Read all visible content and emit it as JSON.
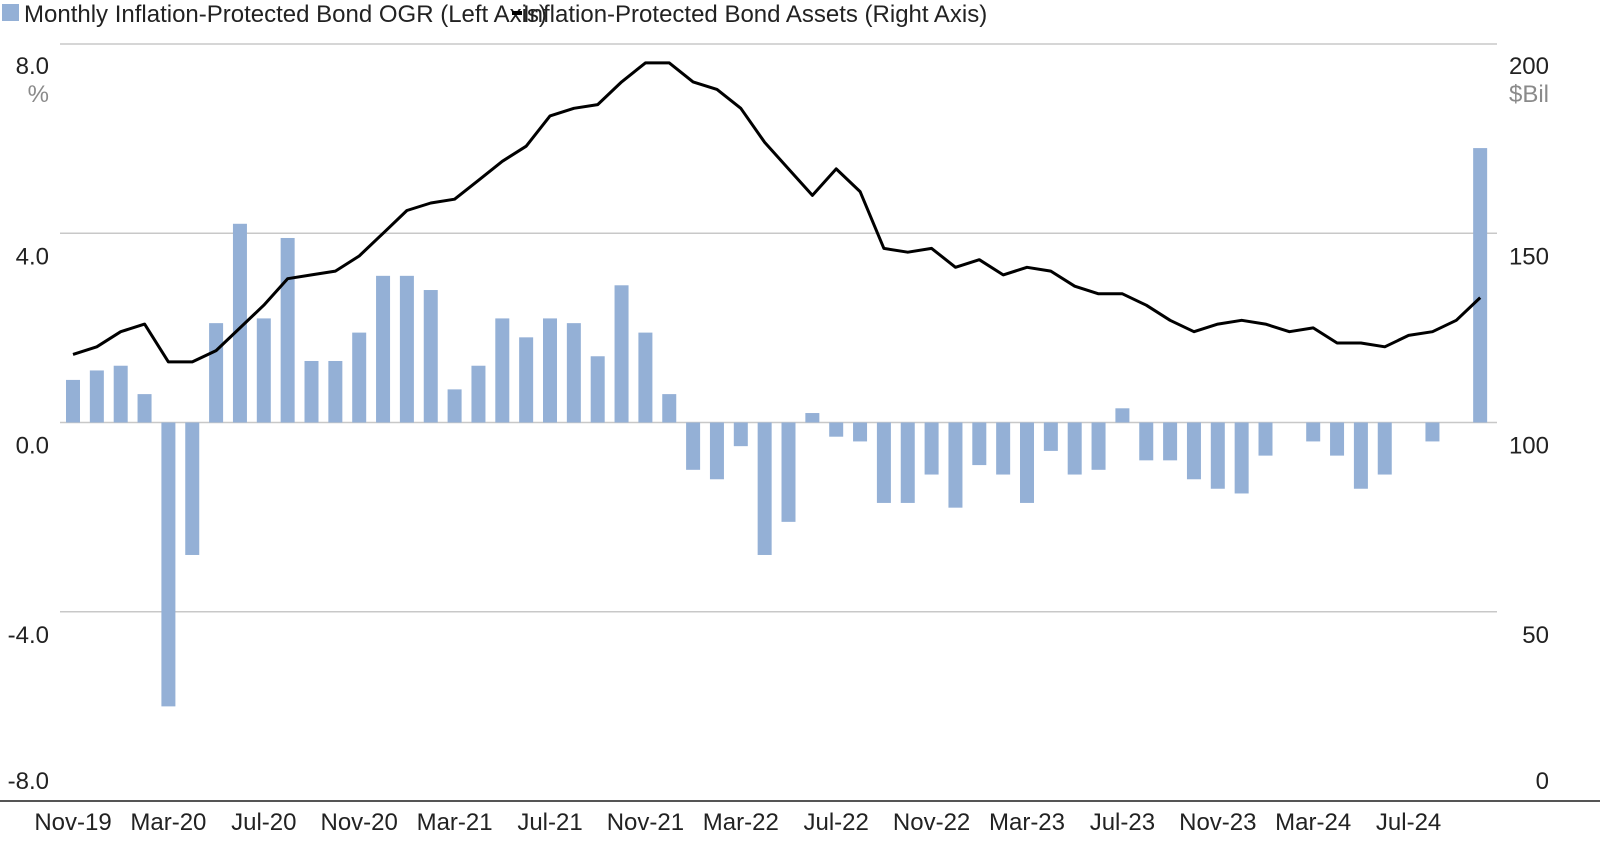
{
  "chart_data": {
    "type": "bar+line",
    "legend": {
      "placement": "top-left",
      "bar_label": "Monthly Inflation-Protected Bond OGR (Left Axis)",
      "line_label": "Inflation-Protected Bond Assets (Right Axis)"
    },
    "left_axis": {
      "unit": "%",
      "ylim": [
        -8,
        8
      ],
      "ticks": [
        8,
        4,
        0,
        -4,
        -8
      ],
      "tick_labels": [
        "8.0",
        "4.0",
        "0.0",
        "-4.0",
        "-8.0"
      ]
    },
    "right_axis": {
      "unit": "$Bil",
      "ylim": [
        0,
        200
      ],
      "ticks": [
        200,
        150,
        100,
        50,
        0
      ],
      "tick_labels": [
        "200",
        "150",
        "100",
        "50",
        "0"
      ]
    },
    "x_tick_labels": [
      "Nov-19",
      "Mar-20",
      "Jul-20",
      "Nov-20",
      "Mar-21",
      "Jul-21",
      "Nov-21",
      "Mar-22",
      "Jul-22",
      "Nov-22",
      "Mar-23",
      "Jul-23",
      "Nov-23",
      "Mar-24",
      "Jul-24"
    ],
    "x_tick_every": 4,
    "months": [
      "Nov-19",
      "Dec-19",
      "Jan-20",
      "Feb-20",
      "Mar-20",
      "Apr-20",
      "May-20",
      "Jun-20",
      "Jul-20",
      "Aug-20",
      "Sep-20",
      "Oct-20",
      "Nov-20",
      "Dec-20",
      "Jan-21",
      "Feb-21",
      "Mar-21",
      "Apr-21",
      "May-21",
      "Jun-21",
      "Jul-21",
      "Aug-21",
      "Sep-21",
      "Oct-21",
      "Nov-21",
      "Dec-21",
      "Jan-22",
      "Feb-22",
      "Mar-22",
      "Apr-22",
      "May-22",
      "Jun-22",
      "Jul-22",
      "Aug-22",
      "Sep-22",
      "Oct-22",
      "Nov-22",
      "Dec-22",
      "Jan-23",
      "Feb-23",
      "Mar-23",
      "Apr-23",
      "May-23",
      "Jun-23",
      "Jul-23",
      "Aug-23",
      "Sep-23",
      "Oct-23",
      "Nov-23",
      "Dec-23",
      "Jan-24",
      "Feb-24",
      "Mar-24",
      "Apr-24",
      "May-24",
      "Jun-24",
      "Jul-24",
      "Aug-24",
      "Sep-24",
      "Oct-24"
    ],
    "series": [
      {
        "kind": "bar",
        "axis": "left",
        "color": "#94b0d6",
        "values": [
          0.9,
          1.1,
          1.2,
          0.6,
          -6.0,
          -2.8,
          2.1,
          4.2,
          2.2,
          3.9,
          1.3,
          1.3,
          1.9,
          3.1,
          3.1,
          2.8,
          0.7,
          1.2,
          2.2,
          1.8,
          2.2,
          2.1,
          1.4,
          2.9,
          1.9,
          0.6,
          -1.0,
          -1.2,
          -0.5,
          -2.8,
          -2.1,
          0.2,
          -0.3,
          -0.4,
          -1.7,
          -1.7,
          -1.1,
          -1.8,
          -0.9,
          -1.1,
          -1.7,
          -0.6,
          -1.1,
          -1.0,
          0.3,
          -0.8,
          -0.8,
          -1.2,
          -1.4,
          -1.5,
          -0.7,
          0,
          -0.4,
          -0.7,
          -1.4,
          -1.1,
          0,
          -0.4,
          0,
          5.8
        ]
      },
      {
        "kind": "line",
        "axis": "right",
        "color": "#000000",
        "values": [
          118,
          120,
          124,
          126,
          116,
          116,
          119,
          125,
          131,
          138,
          139,
          140,
          144,
          150,
          156,
          158,
          159,
          164,
          169,
          173,
          181,
          183,
          184,
          190,
          195,
          195,
          190,
          188,
          183,
          174,
          167,
          160,
          167,
          161,
          146,
          145,
          146,
          141,
          143,
          139,
          141,
          140,
          136,
          134,
          134,
          131,
          127,
          124,
          126,
          127,
          126,
          124,
          125,
          121,
          121,
          120,
          123,
          124,
          127,
          133
        ]
      }
    ]
  }
}
